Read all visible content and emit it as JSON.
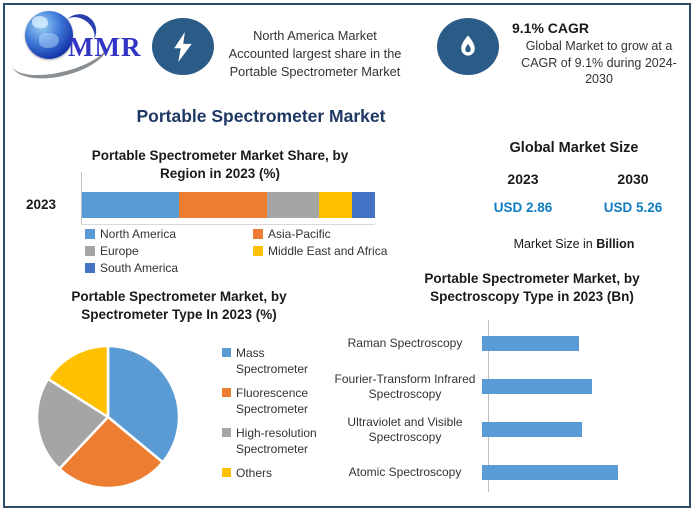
{
  "header": {
    "logo_text": "MMR",
    "banner1": {
      "icon": "lightning-icon",
      "text": "North America Market\nAccounted largest share in the\nPortable Spectrometer Market"
    },
    "banner2": {
      "icon": "flame-icon",
      "title": "9.1% CAGR",
      "text": "Global Market to grow at a\nCAGR of 9.1% during 2024-\n2030"
    }
  },
  "main_title": "Portable Spectrometer Market",
  "market_size": {
    "title": "Global Market Size",
    "year_left": "2023",
    "year_right": "2030",
    "value_left": "USD 2.86",
    "value_right": "USD 5.26",
    "note_prefix": "Market Size in ",
    "note_bold": "Billion",
    "value_color": "#0F7DC2"
  },
  "colors": {
    "title_navy": "#1F3864",
    "badge_blue": "#2B5C88",
    "frame_border": "#2F4B66"
  },
  "chart_data": [
    {
      "id": "region_share",
      "type": "bar",
      "subtype": "stacked-horizontal",
      "title": "Portable Spectrometer Market Share, by\nRegion in 2023 (%)",
      "categories": [
        "2023"
      ],
      "series": [
        {
          "name": "North America",
          "color": "#5B9BD5",
          "values": [
            33
          ]
        },
        {
          "name": "Asia-Pacific",
          "color": "#ED7D31",
          "values": [
            30
          ]
        },
        {
          "name": "Europe",
          "color": "#A5A5A5",
          "values": [
            18
          ]
        },
        {
          "name": "Middle East and Africa",
          "color": "#FFC000",
          "values": [
            11
          ]
        },
        {
          "name": "South America",
          "color": "#4472C4",
          "values": [
            8
          ]
        }
      ],
      "xlim": [
        0,
        100
      ],
      "legend_position": "bottom"
    },
    {
      "id": "spectrometer_type",
      "type": "pie",
      "title": "Portable Spectrometer Market, by\nSpectrometer Type In 2023 (%)",
      "labels": [
        "Mass Spectrometer",
        "Fluorescence Spectrometer",
        "High-resolution Spectrometer",
        "Others"
      ],
      "values": [
        36,
        26,
        22,
        16
      ],
      "colors": [
        "#5B9BD5",
        "#ED7D31",
        "#A5A5A5",
        "#FFC000"
      ],
      "start_angle_deg": 0,
      "direction": "clockwise",
      "legend_position": "right"
    },
    {
      "id": "spectroscopy_type",
      "type": "bar",
      "subtype": "horizontal",
      "title": "Portable Spectrometer Market, by\nSpectroscopy Type in 2023 (Bn)",
      "categories": [
        "Raman Spectroscopy",
        "Fourier-Transform Infrared Spectroscopy",
        "Ultraviolet and Visible Spectroscopy",
        "Atomic Spectroscopy"
      ],
      "values": [
        0.63,
        0.71,
        0.65,
        0.88
      ],
      "bar_color": "#5B9BD5",
      "grid": false
    }
  ]
}
